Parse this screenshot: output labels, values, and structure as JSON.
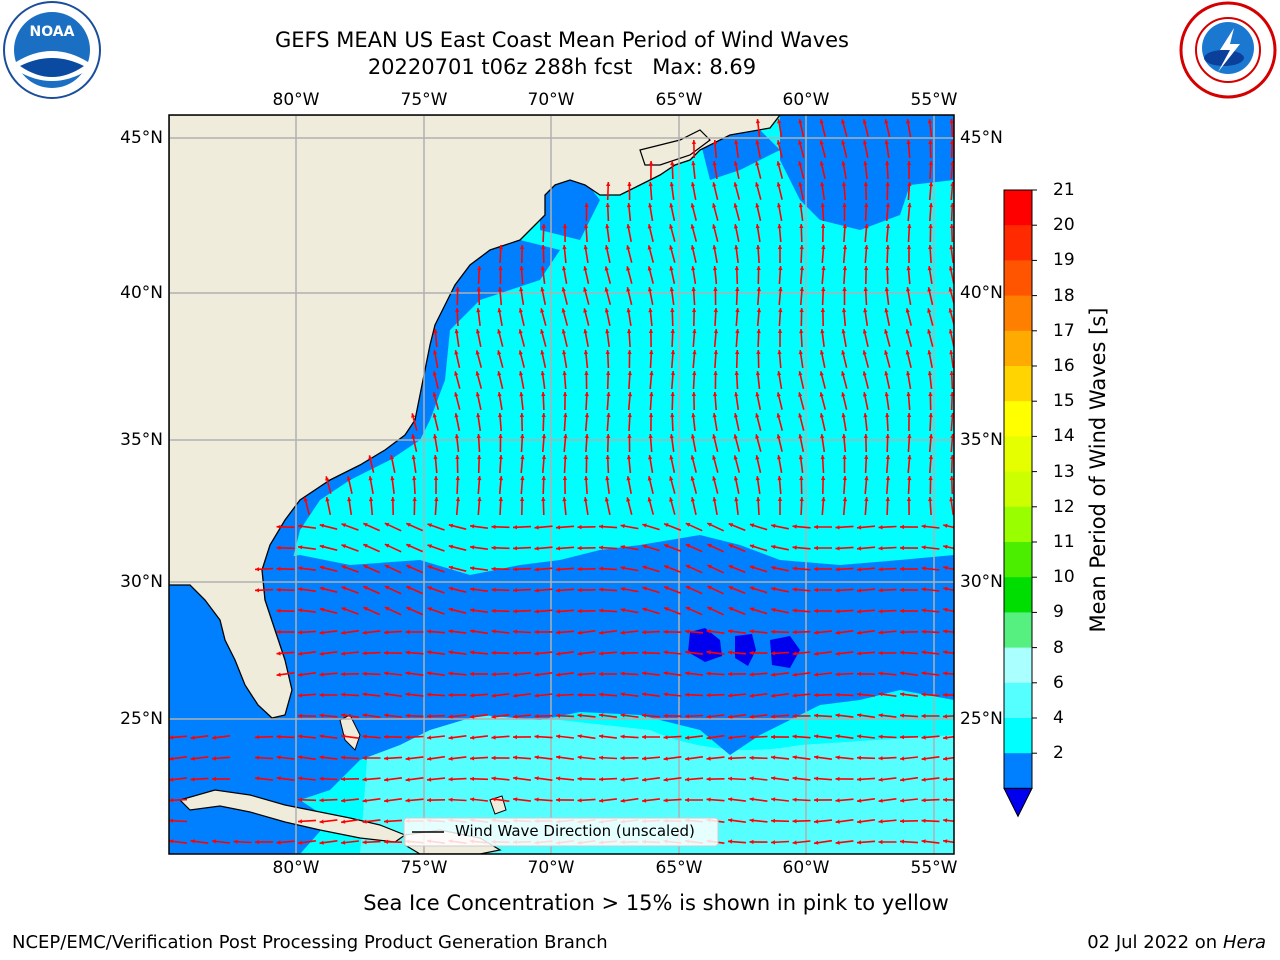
{
  "header": {
    "title_line1": "GEFS MEAN US East Coast Mean Period of Wind Waves",
    "title_line2": "20220701 t06z 288h fcst   Max: 8.69"
  },
  "logos": {
    "left": {
      "icon": "noaa-logo-icon",
      "text": "NOAA"
    },
    "right": {
      "icon": "national-weather-service-logo-icon"
    }
  },
  "map": {
    "lon_labels": [
      "80°W",
      "75°W",
      "70°W",
      "65°W",
      "60°W",
      "55°W"
    ],
    "lat_labels": [
      "45°N",
      "40°N",
      "35°N",
      "30°N",
      "25°N"
    ],
    "colors": {
      "land": "#efecdc",
      "coast": "#000000",
      "grid": "#b0b0b0",
      "arrow": "#ff0000"
    },
    "legend_label": "Wind Wave Direction (unscaled)"
  },
  "colorbar": {
    "label": "Mean Period of Wind Waves [s]",
    "ticks": [
      "21",
      "20",
      "19",
      "18",
      "17",
      "16",
      "15",
      "14",
      "13",
      "12",
      "11",
      "10",
      "9",
      "8",
      "6",
      "4",
      "2"
    ],
    "colors": [
      "#ff0000",
      "#ff2a00",
      "#ff5500",
      "#ff8000",
      "#ffaa00",
      "#ffd400",
      "#ffff00",
      "#e6ff00",
      "#ccff00",
      "#99ff00",
      "#4cee00",
      "#00dd00",
      "#55f07f",
      "#aaffff",
      "#55ffff",
      "#00ffff",
      "#0080ff"
    ],
    "under_color": "#0000ee"
  },
  "note": "Sea Ice Concentration > 15% is shown in pink to yellow",
  "footer": {
    "left": "NCEP/EMC/Verification Post Processing Product Generation Branch",
    "right_date": "02 Jul 2022 on",
    "right_machine": "Hera"
  }
}
